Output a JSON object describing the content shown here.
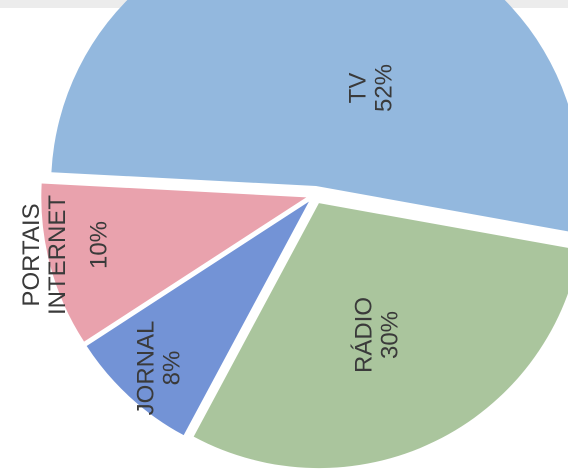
{
  "chart_data": {
    "type": "pie",
    "categories": [
      "TV",
      "RÁDIO",
      "JORNAL",
      "PORTAIS INTERNET"
    ],
    "values": [
      52,
      30,
      8,
      10
    ],
    "value_labels": [
      "52%",
      "30%",
      "8%",
      "10%"
    ],
    "colors": [
      "#93b8de",
      "#aac59d",
      "#7393d6",
      "#e9a2ad"
    ]
  }
}
